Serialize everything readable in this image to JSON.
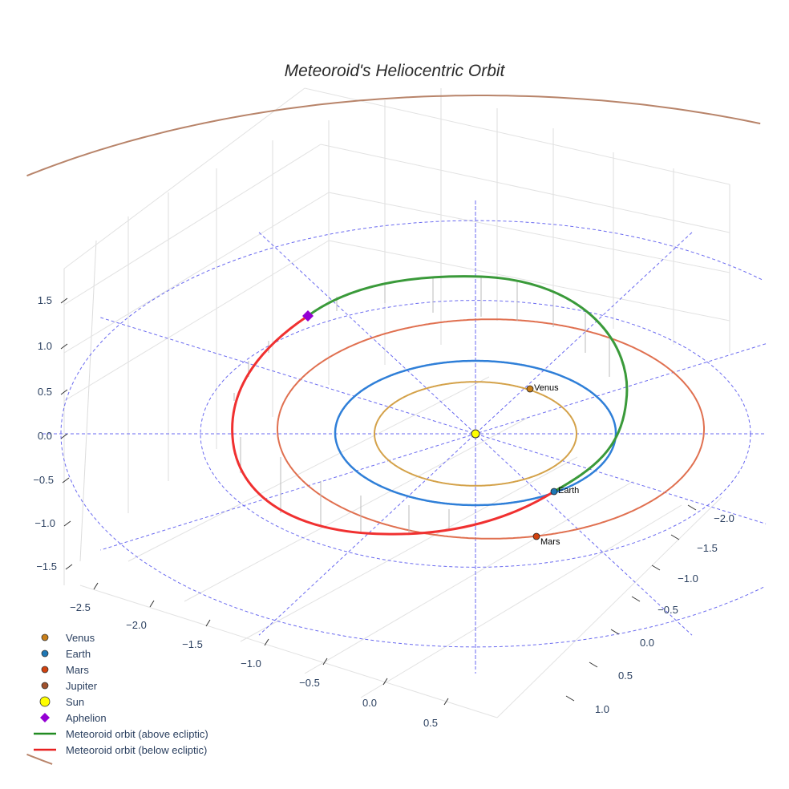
{
  "chart_data": {
    "type": "scatter3d",
    "title": "Meteoroid's Heliocentric Orbit",
    "axes": {
      "x": {
        "ticks": [
          "−2.5",
          "−2.0",
          "−1.5",
          "−1.0",
          "−0.5",
          "0.0",
          "0.5"
        ]
      },
      "y": {
        "ticks": [
          "−2.0",
          "−1.5",
          "−1.0",
          "−0.5",
          "0.0",
          "0.5",
          "1.0"
        ]
      },
      "z": {
        "ticks": [
          "1.5",
          "1.0",
          "0.5",
          "0.0",
          "−0.5",
          "−1.0",
          "−1.5"
        ]
      }
    },
    "orbits": [
      {
        "name": "Venus",
        "radius_au": 0.72,
        "color": "#d4a24a"
      },
      {
        "name": "Earth",
        "radius_au": 1.0,
        "color": "#2f7fd8"
      },
      {
        "name": "Mars",
        "radius_au": 1.52,
        "color": "#e07050"
      },
      {
        "name": "Jupiter",
        "radius_au": 5.2,
        "color": "#b8846a"
      }
    ],
    "planets": [
      {
        "name": "Venus",
        "label": "Venus",
        "color": "#c87f1a"
      },
      {
        "name": "Earth",
        "label": "Earth",
        "color": "#1f77b4"
      },
      {
        "name": "Mars",
        "label": "Mars",
        "color": "#d1420f"
      }
    ],
    "reference_circles_au": [
      2.0,
      3.0
    ],
    "legend": [
      {
        "label": "Venus",
        "color": "#c87f1a",
        "symbol": "circle"
      },
      {
        "label": "Earth",
        "color": "#1f77b4",
        "symbol": "circle"
      },
      {
        "label": "Mars",
        "color": "#d1420f",
        "symbol": "circle"
      },
      {
        "label": "Jupiter",
        "color": "#a0522d",
        "symbol": "circle"
      },
      {
        "label": "Sun",
        "color": "#ffff00",
        "symbol": "big-circle"
      },
      {
        "label": "Aphelion",
        "color": "#9400d3",
        "symbol": "diamond"
      },
      {
        "label": "Meteoroid orbit (above ecliptic)",
        "color": "#228b22",
        "symbol": "line"
      },
      {
        "label": "Meteoroid orbit (below ecliptic)",
        "color": "#e82020",
        "symbol": "line"
      }
    ],
    "legend_position": "bottom-left"
  }
}
